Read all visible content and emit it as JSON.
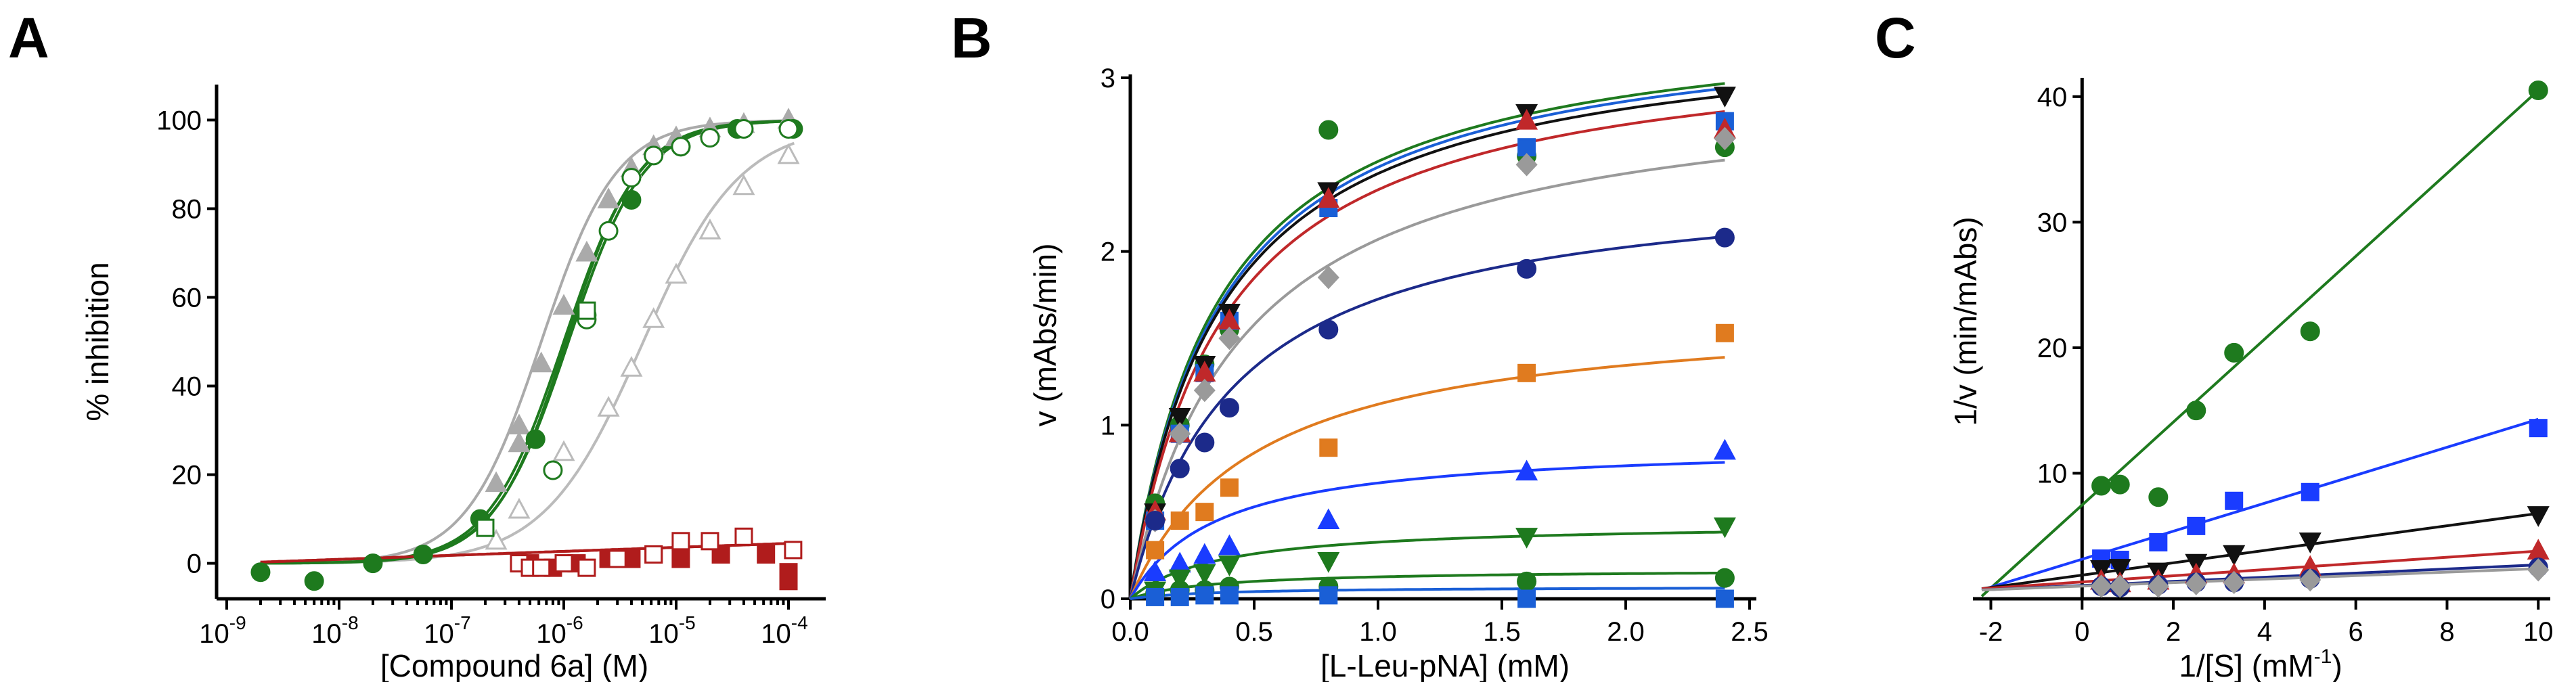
{
  "chart_data": [
    {
      "panel": "A",
      "type": "scatter",
      "xlabel": "[Compound 6a] (M)",
      "ylabel": "% inhibition",
      "x_scale": "log",
      "xlim": [
        1e-09,
        0.0001
      ],
      "ylim": [
        -8,
        108
      ],
      "x_ticks": [
        {
          "base": "10",
          "exp": "-9",
          "value": 1e-09
        },
        {
          "base": "10",
          "exp": "-8",
          "value": 1e-08
        },
        {
          "base": "10",
          "exp": "-7",
          "value": 1e-07
        },
        {
          "base": "10",
          "exp": "-6",
          "value": 1e-06
        },
        {
          "base": "10",
          "exp": "-5",
          "value": 1e-05
        },
        {
          "base": "10",
          "exp": "-4",
          "value": 0.0001
        }
      ],
      "y_ticks": [
        "0",
        "20",
        "40",
        "60",
        "80",
        "100"
      ],
      "series": [
        {
          "color": "#aaaaaa",
          "marker": "triangle",
          "filled": true,
          "fit": {
            "top": 100,
            "bottom": 0,
            "ic50": 6.3e-07,
            "hill": 1.3
          },
          "points": [
            [
              2.5e-07,
              18
            ],
            [
              4e-07,
              27
            ],
            [
              4e-07,
              31
            ],
            [
              6.3e-07,
              45
            ],
            [
              1e-06,
              58
            ],
            [
              1.6e-06,
              70
            ],
            [
              2.5e-06,
              82
            ],
            [
              4e-06,
              89
            ],
            [
              6.3e-06,
              94
            ],
            [
              1e-05,
              96
            ],
            [
              2e-05,
              98
            ],
            [
              4e-05,
              99
            ],
            [
              0.0001,
              100
            ]
          ]
        },
        {
          "color": "#bbbbbb",
          "marker": "triangle",
          "filled": false,
          "fit": {
            "top": 99,
            "bottom": 0,
            "ic50": 5e-06,
            "hill": 1.0
          },
          "points": [
            [
              2.5e-07,
              5
            ],
            [
              4e-07,
              12
            ],
            [
              1e-06,
              25
            ],
            [
              2.5e-06,
              35
            ],
            [
              4e-06,
              44
            ],
            [
              6.3e-06,
              55
            ],
            [
              1e-05,
              65
            ],
            [
              2e-05,
              75
            ],
            [
              4e-05,
              85
            ],
            [
              0.0001,
              92
            ]
          ]
        },
        {
          "color": "#1e7a1e",
          "marker": "circle",
          "filled": true,
          "fit": {
            "top": 100,
            "bottom": 0,
            "ic50": 1e-06,
            "hill": 1.3
          },
          "points": [
            [
              2e-09,
              -2
            ],
            [
              6e-09,
              -4
            ],
            [
              2e-08,
              0
            ],
            [
              5.6e-08,
              2
            ],
            [
              1.8e-07,
              10
            ],
            [
              5.6e-07,
              28
            ],
            [
              1.6e-06,
              56
            ],
            [
              4e-06,
              82
            ],
            [
              1.1e-05,
              94
            ],
            [
              3.5e-05,
              98
            ],
            [
              0.00011,
              98
            ]
          ]
        },
        {
          "color": "#1e7a1e",
          "marker": "circle",
          "filled": false,
          "fit": {
            "top": 100,
            "bottom": 0,
            "ic50": 1.05e-06,
            "hill": 1.35
          },
          "points": [
            [
              8e-07,
              21
            ],
            [
              1.6e-06,
              55
            ],
            [
              2.5e-06,
              75
            ],
            [
              4e-06,
              87
            ],
            [
              6.3e-06,
              92
            ],
            [
              1.1e-05,
              94
            ],
            [
              2e-05,
              96
            ],
            [
              4e-05,
              98
            ],
            [
              0.0001,
              98
            ]
          ]
        },
        {
          "color": "#1e7a1e",
          "marker": "square",
          "filled": false,
          "fit": {
            "top": 100,
            "bottom": 0,
            "ic50": 1.1e-06,
            "hill": 1.3
          },
          "points": [
            [
              2e-07,
              8
            ],
            [
              1.6e-06,
              57
            ]
          ]
        },
        {
          "color": "#b01c1c",
          "marker": "square",
          "filled": true,
          "fit": {
            "type": "linear",
            "y0": 0,
            "y1": 4.5
          },
          "points": [
            [
              5e-07,
              0
            ],
            [
              8e-07,
              -1
            ],
            [
              1.3e-06,
              0
            ],
            [
              2.5e-06,
              1
            ],
            [
              4e-06,
              1
            ],
            [
              6.3e-06,
              2
            ],
            [
              1.1e-05,
              1
            ],
            [
              2.5e-05,
              2
            ],
            [
              6.3e-05,
              2
            ],
            [
              0.0001,
              -2
            ],
            [
              0.0001,
              -4
            ]
          ]
        },
        {
          "color": "#b01c1c",
          "marker": "square",
          "filled": false,
          "fit": {
            "type": "linear",
            "y0": 0,
            "y1": 4.5
          },
          "points": [
            [
              4e-07,
              0
            ],
            [
              5e-07,
              -1
            ],
            [
              6.3e-07,
              -1
            ],
            [
              1e-06,
              0
            ],
            [
              1.6e-06,
              -1
            ],
            [
              3e-06,
              1
            ],
            [
              6.3e-06,
              2
            ],
            [
              1.1e-05,
              5
            ],
            [
              2e-05,
              5
            ],
            [
              4e-05,
              6
            ],
            [
              0.00011,
              3
            ]
          ]
        }
      ]
    },
    {
      "panel": "B",
      "type": "scatter",
      "xlabel": "[L-Leu-pNA] (mM)",
      "ylabel": "v (mAbs/min)",
      "xlim": [
        0,
        2.5
      ],
      "ylim": [
        0,
        3
      ],
      "x_ticks": [
        "0.0",
        "0.5",
        "1.0",
        "1.5",
        "2.0",
        "2.5"
      ],
      "y_ticks": [
        "0",
        "1",
        "2",
        "3"
      ],
      "x_values": [
        0.1,
        0.2,
        0.3,
        0.4,
        0.8,
        1.6,
        2.4
      ],
      "series": [
        {
          "color": "#1e7a1e",
          "marker": "circle",
          "fit": {
            "vmax": 3.4,
            "km": 0.35
          },
          "values": [
            0.55,
            1.0,
            1.35,
            1.55,
            2.7,
            2.55,
            2.6
          ]
        },
        {
          "color": "#1a5fd6",
          "marker": "square",
          "fit": {
            "vmax": 3.38,
            "km": 0.36
          },
          "values": [
            0.45,
            0.95,
            1.3,
            1.6,
            2.25,
            2.6,
            2.75
          ]
        },
        {
          "color": "#111111",
          "marker": "triangle-down",
          "fit": {
            "vmax": 3.33,
            "km": 0.36
          },
          "values": [
            0.5,
            1.05,
            1.35,
            1.65,
            2.35,
            2.8,
            2.9
          ]
        },
        {
          "color": "#c0282a",
          "marker": "triangle",
          "fit": {
            "vmax": 3.25,
            "km": 0.38
          },
          "values": [
            0.5,
            0.95,
            1.3,
            1.6,
            2.3,
            2.75,
            2.7
          ]
        },
        {
          "color": "#9a9a9a",
          "marker": "diamond",
          "fit": {
            "vmax": 3.0,
            "km": 0.45
          },
          "values": [
            0.45,
            0.95,
            1.2,
            1.5,
            1.85,
            2.5,
            2.65
          ]
        },
        {
          "color": "#1c2a8a",
          "marker": "circle",
          "fit": {
            "vmax": 2.45,
            "km": 0.42
          },
          "values": [
            0.45,
            0.75,
            0.9,
            1.1,
            1.55,
            1.9,
            2.08
          ]
        },
        {
          "color": "#e07b1f",
          "marker": "square",
          "fit": {
            "vmax": 1.68,
            "km": 0.5
          },
          "values": [
            0.28,
            0.45,
            0.5,
            0.64,
            0.87,
            1.3,
            1.53
          ]
        },
        {
          "color": "#1a3cff",
          "marker": "triangle",
          "fit": {
            "vmax": 0.9,
            "km": 0.35
          },
          "values": [
            0.15,
            0.2,
            0.25,
            0.3,
            0.45,
            0.73,
            0.85
          ]
        },
        {
          "color": "#1e7a1e",
          "marker": "triangle-down",
          "fit": {
            "vmax": 0.44,
            "km": 0.35
          },
          "values": [
            0.05,
            0.12,
            0.15,
            0.2,
            0.22,
            0.36,
            0.42
          ]
        },
        {
          "color": "#1e7a1e",
          "marker": "circle",
          "fit": {
            "vmax": 0.17,
            "km": 0.35
          },
          "values": [
            0.03,
            0.05,
            0.05,
            0.07,
            0.07,
            0.1,
            0.12
          ]
        },
        {
          "color": "#1a5fd6",
          "marker": "square",
          "fit": {
            "vmax": 0.07,
            "km": 0.35
          },
          "values": [
            0.01,
            0.01,
            0.02,
            0.02,
            0.02,
            0.0,
            0.0
          ]
        }
      ]
    },
    {
      "panel": "C",
      "type": "scatter",
      "xlabel": "1/[S] (mM",
      "xlabel_sup": "-1",
      "xlabel_end": ")",
      "ylabel": "1/v (min/mAbs)",
      "xlim": [
        -2.2,
        10.1
      ],
      "ylim": [
        0,
        41.5
      ],
      "x_ticks": [
        "-2",
        "0",
        "2",
        "4",
        "6",
        "8",
        "10"
      ],
      "y_ticks": [
        "10",
        "20",
        "30",
        "40"
      ],
      "series": [
        {
          "color": "#1e7a1e",
          "marker": "circle",
          "line": [
            [
              -2.2,
              0.2
            ],
            [
              10,
              40.5
            ]
          ],
          "points": [
            [
              0.42,
              9.0
            ],
            [
              0.83,
              9.1
            ],
            [
              1.67,
              8.1
            ],
            [
              2.5,
              15.0
            ],
            [
              3.33,
              19.6
            ],
            [
              5.0,
              21.3
            ],
            [
              10.0,
              40.5
            ]
          ]
        },
        {
          "color": "#1a3cff",
          "marker": "square",
          "line": [
            [
              -2.2,
              0.7
            ],
            [
              10,
              14.3
            ]
          ],
          "points": [
            [
              0.42,
              3.2
            ],
            [
              0.83,
              3.1
            ],
            [
              1.67,
              4.5
            ],
            [
              2.5,
              5.8
            ],
            [
              3.33,
              7.8
            ],
            [
              5.0,
              8.5
            ],
            [
              10.0,
              13.6
            ]
          ]
        },
        {
          "color": "#111111",
          "marker": "triangle-down",
          "line": [
            [
              -2.2,
              0.8
            ],
            [
              10,
              6.8
            ]
          ],
          "points": [
            [
              0.42,
              2.4
            ],
            [
              0.83,
              2.5
            ],
            [
              1.67,
              2.2
            ],
            [
              2.5,
              2.9
            ],
            [
              3.33,
              3.6
            ],
            [
              5.0,
              4.6
            ],
            [
              10.0,
              6.7
            ]
          ]
        },
        {
          "color": "#c0282a",
          "marker": "triangle",
          "line": [
            [
              -2.2,
              0.8
            ],
            [
              10,
              3.8
            ]
          ],
          "points": [
            [
              0.42,
              1.4
            ],
            [
              0.83,
              1.2
            ],
            [
              1.67,
              1.4
            ],
            [
              2.5,
              1.9
            ],
            [
              3.33,
              1.9
            ],
            [
              5.0,
              2.5
            ],
            [
              10.0,
              3.8
            ]
          ]
        },
        {
          "color": "#1c2a8a",
          "marker": "circle",
          "line": [
            [
              -2.2,
              0.7
            ],
            [
              10,
              2.7
            ]
          ],
          "points": [
            [
              0.42,
              1.0
            ],
            [
              0.83,
              0.9
            ],
            [
              1.67,
              1.1
            ],
            [
              2.5,
              1.3
            ],
            [
              3.33,
              1.3
            ],
            [
              5.0,
              1.6
            ],
            [
              10.0,
              2.5
            ]
          ]
        },
        {
          "color": "#9a9a9a",
          "marker": "diamond",
          "line": [
            [
              -2.2,
              0.7
            ],
            [
              10,
              2.4
            ]
          ],
          "points": [
            [
              0.42,
              1.0
            ],
            [
              0.83,
              1.0
            ],
            [
              1.67,
              1.0
            ],
            [
              2.5,
              1.2
            ],
            [
              3.33,
              1.3
            ],
            [
              5.0,
              1.5
            ],
            [
              10.0,
              2.3
            ]
          ]
        }
      ]
    }
  ]
}
